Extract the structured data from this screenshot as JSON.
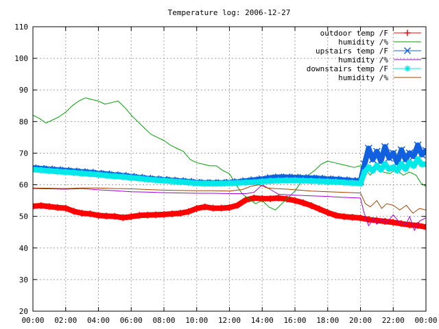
{
  "chart_data": {
    "type": "line",
    "title": "Temperature log: 2006-12-27",
    "xlabel": "",
    "ylabel": "",
    "x_unit": "hours",
    "xlim": [
      0,
      24
    ],
    "ylim": [
      20,
      110
    ],
    "grid": true,
    "legend_placement": "top-right",
    "x_tick_labels": [
      "00:00",
      "02:00",
      "04:00",
      "06:00",
      "08:00",
      "10:00",
      "12:00",
      "14:00",
      "16:00",
      "18:00",
      "20:00",
      "22:00",
      "00:00"
    ],
    "y_tick_labels": [
      "20",
      "30",
      "40",
      "50",
      "60",
      "70",
      "80",
      "90",
      "100",
      "110"
    ],
    "series": [
      {
        "name": "outdoor temp /F",
        "color": "#ff0000",
        "marker": "plus",
        "x": [
          0,
          0.5,
          1,
          1.5,
          2,
          2.5,
          3,
          3.5,
          4,
          4.5,
          5,
          5.5,
          6,
          6.5,
          7,
          7.5,
          8,
          8.5,
          9,
          9.5,
          10,
          10.5,
          11,
          11.5,
          12,
          12.5,
          13,
          13.5,
          14,
          14.5,
          15,
          15.5,
          16,
          16.5,
          17,
          17.5,
          18,
          18.5,
          19,
          19.5,
          20,
          20.5,
          21,
          21.5,
          22,
          22.5,
          23,
          23.5,
          24
        ],
        "y": [
          53.2,
          53.4,
          53.1,
          52.8,
          52.6,
          51.6,
          51,
          50.8,
          50.3,
          50.1,
          50,
          49.6,
          49.9,
          50.3,
          50.4,
          50.5,
          50.6,
          50.8,
          51,
          51.5,
          52.5,
          53,
          52.6,
          52.6,
          52.8,
          53.5,
          55.2,
          55.8,
          55.6,
          55.6,
          55.8,
          55.5,
          55,
          54.3,
          53.4,
          52.3,
          51.2,
          50.3,
          49.9,
          49.7,
          49.5,
          49,
          48.7,
          48.4,
          48.1,
          47.7,
          47.3,
          47.1,
          46.6
        ]
      },
      {
        "name": "humidity /%",
        "color": "#00a000",
        "marker": "none",
        "x": [
          0,
          0.4,
          0.8,
          1.2,
          1.6,
          2,
          2.4,
          2.8,
          3.2,
          3.6,
          4,
          4.4,
          4.8,
          5.2,
          5.6,
          6,
          6.4,
          6.8,
          7.2,
          7.6,
          8,
          8.4,
          8.8,
          9.2,
          9.6,
          10,
          10.4,
          10.8,
          11.2,
          11.6,
          12,
          12.4,
          12.8,
          13.2,
          13.6,
          14,
          14.4,
          14.8,
          15.2,
          15.6,
          16,
          16.4,
          16.8,
          17.2,
          17.6,
          18,
          18.4,
          18.8,
          19.2,
          19.6,
          20,
          20.3,
          20.6,
          21,
          21.4,
          21.8,
          22.2,
          22.6,
          23,
          23.4,
          23.7,
          24
        ],
        "y": [
          82,
          81,
          79.5,
          80.5,
          81.5,
          83,
          85,
          86.5,
          87.5,
          87,
          86.5,
          85.5,
          86,
          86.5,
          84.5,
          82,
          80,
          78,
          76,
          75,
          74,
          72.5,
          71.5,
          70.5,
          68,
          67,
          66.5,
          66,
          66,
          64.5,
          63.5,
          60,
          57,
          55.5,
          54,
          55,
          53,
          52,
          54,
          56,
          58,
          61,
          63,
          64.5,
          66.5,
          67.5,
          67,
          66.5,
          66,
          65.5,
          66,
          65,
          63,
          66,
          64,
          63.5,
          65,
          63,
          64,
          63,
          60.5,
          59.5
        ]
      },
      {
        "name": "upstairs temp /F",
        "color": "#1060e0",
        "marker": "cross",
        "x": [
          0,
          0.5,
          1,
          1.5,
          2,
          2.5,
          3,
          3.5,
          4,
          4.5,
          5,
          5.5,
          6,
          6.5,
          7,
          7.5,
          8,
          8.5,
          9,
          9.5,
          10,
          10.5,
          11,
          11.5,
          12,
          12.5,
          13,
          13.5,
          14,
          14.5,
          15,
          15.5,
          16,
          16.5,
          17,
          17.5,
          18,
          18.5,
          19,
          19.5,
          20,
          20.25,
          20.5,
          20.75,
          21,
          21.25,
          21.5,
          21.75,
          22,
          22.25,
          22.5,
          22.75,
          23,
          23.25,
          23.5,
          23.75,
          24
        ],
        "y": [
          65.3,
          65.1,
          64.9,
          64.7,
          64.5,
          64.3,
          64.1,
          63.9,
          63.6,
          63.4,
          63.1,
          62.9,
          62.6,
          62.3,
          62,
          61.8,
          61.6,
          61.4,
          61.2,
          61,
          60.7,
          60.6,
          60.6,
          60.6,
          60.7,
          60.9,
          61.2,
          61.5,
          61.8,
          62.2,
          62.4,
          62.4,
          62.3,
          62.2,
          62.1,
          62,
          61.8,
          61.7,
          61.5,
          61.3,
          61.1,
          66.5,
          71.5,
          68,
          70.5,
          67.5,
          72,
          68.5,
          70,
          67,
          71,
          68,
          70,
          69,
          72.5,
          69.5,
          70.8
        ]
      },
      {
        "name": "humidity /%",
        "color": "#a000d0",
        "marker": "none",
        "x": [
          0,
          1,
          2,
          3,
          4,
          5,
          6,
          7,
          8,
          9,
          10,
          11,
          12,
          13,
          13.5,
          14,
          14.5,
          15,
          16,
          17,
          18,
          19,
          20,
          20.2,
          20.5,
          20.8,
          21,
          21.3,
          21.6,
          22,
          22.4,
          22.8,
          23,
          23.3,
          23.6,
          24
        ],
        "y": [
          58.8,
          58.7,
          58.6,
          58.8,
          58.4,
          58.1,
          57.8,
          57.7,
          57.5,
          57.4,
          57.3,
          57.3,
          57.2,
          57.2,
          57.6,
          60,
          58.5,
          57,
          56.7,
          56.5,
          56.3,
          56,
          55.8,
          51.5,
          47,
          49.5,
          47.5,
          49,
          48,
          50.5,
          48,
          47.5,
          50,
          45.5,
          48.5,
          49.5
        ]
      },
      {
        "name": "downstairs temp /F",
        "color": "#00e8e8",
        "marker": "star",
        "x": [
          0,
          0.5,
          1,
          1.5,
          2,
          2.5,
          3,
          3.5,
          4,
          4.5,
          5,
          5.5,
          6,
          6.5,
          7,
          7.5,
          8,
          8.5,
          9,
          9.5,
          10,
          10.5,
          11,
          11.5,
          12,
          12.5,
          13,
          13.5,
          14,
          14.5,
          15,
          15.5,
          16,
          16.5,
          17,
          17.5,
          18,
          18.5,
          19,
          19.5,
          20,
          20.25,
          20.5,
          20.75,
          21,
          21.25,
          21.5,
          21.75,
          22,
          22.25,
          22.5,
          22.75,
          23,
          23.25,
          23.5,
          23.75,
          24
        ],
        "y": [
          64.8,
          64.6,
          64.4,
          64.2,
          64,
          63.8,
          63.6,
          63.4,
          63.2,
          62.9,
          62.7,
          62.5,
          62.2,
          62,
          61.7,
          61.5,
          61.3,
          61.1,
          60.9,
          60.7,
          60.5,
          60.4,
          60.4,
          60.4,
          60.5,
          60.6,
          60.7,
          60.8,
          61,
          61.2,
          61.3,
          61.4,
          61.4,
          61.3,
          61.2,
          61.1,
          61,
          60.9,
          60.7,
          60.6,
          60.4,
          64,
          65.5,
          64.5,
          66,
          64.8,
          66.5,
          65,
          65.5,
          64.5,
          66.5,
          65,
          67,
          66,
          68,
          66.5,
          66.5
        ]
      },
      {
        "name": "humidity /%",
        "color": "#a04000",
        "marker": "none",
        "x": [
          0,
          1,
          2,
          3,
          4,
          5,
          6,
          7,
          8,
          9,
          10,
          11,
          12,
          12.8,
          13.3,
          13.8,
          14.3,
          14.8,
          15.5,
          16,
          17,
          18,
          19,
          20,
          20.3,
          20.6,
          21,
          21.3,
          21.6,
          22,
          22.4,
          22.8,
          23.2,
          23.6,
          24
        ],
        "y": [
          59,
          58.9,
          58.8,
          59,
          59,
          58.8,
          58.7,
          58.5,
          58.3,
          58.2,
          58.1,
          58.1,
          58,
          58.5,
          59.5,
          60,
          59,
          58.8,
          58.6,
          58.4,
          58,
          57.8,
          57.6,
          57.4,
          54,
          53,
          55,
          52.5,
          54,
          53.5,
          52,
          53.5,
          51,
          52.5,
          52
        ]
      }
    ]
  }
}
